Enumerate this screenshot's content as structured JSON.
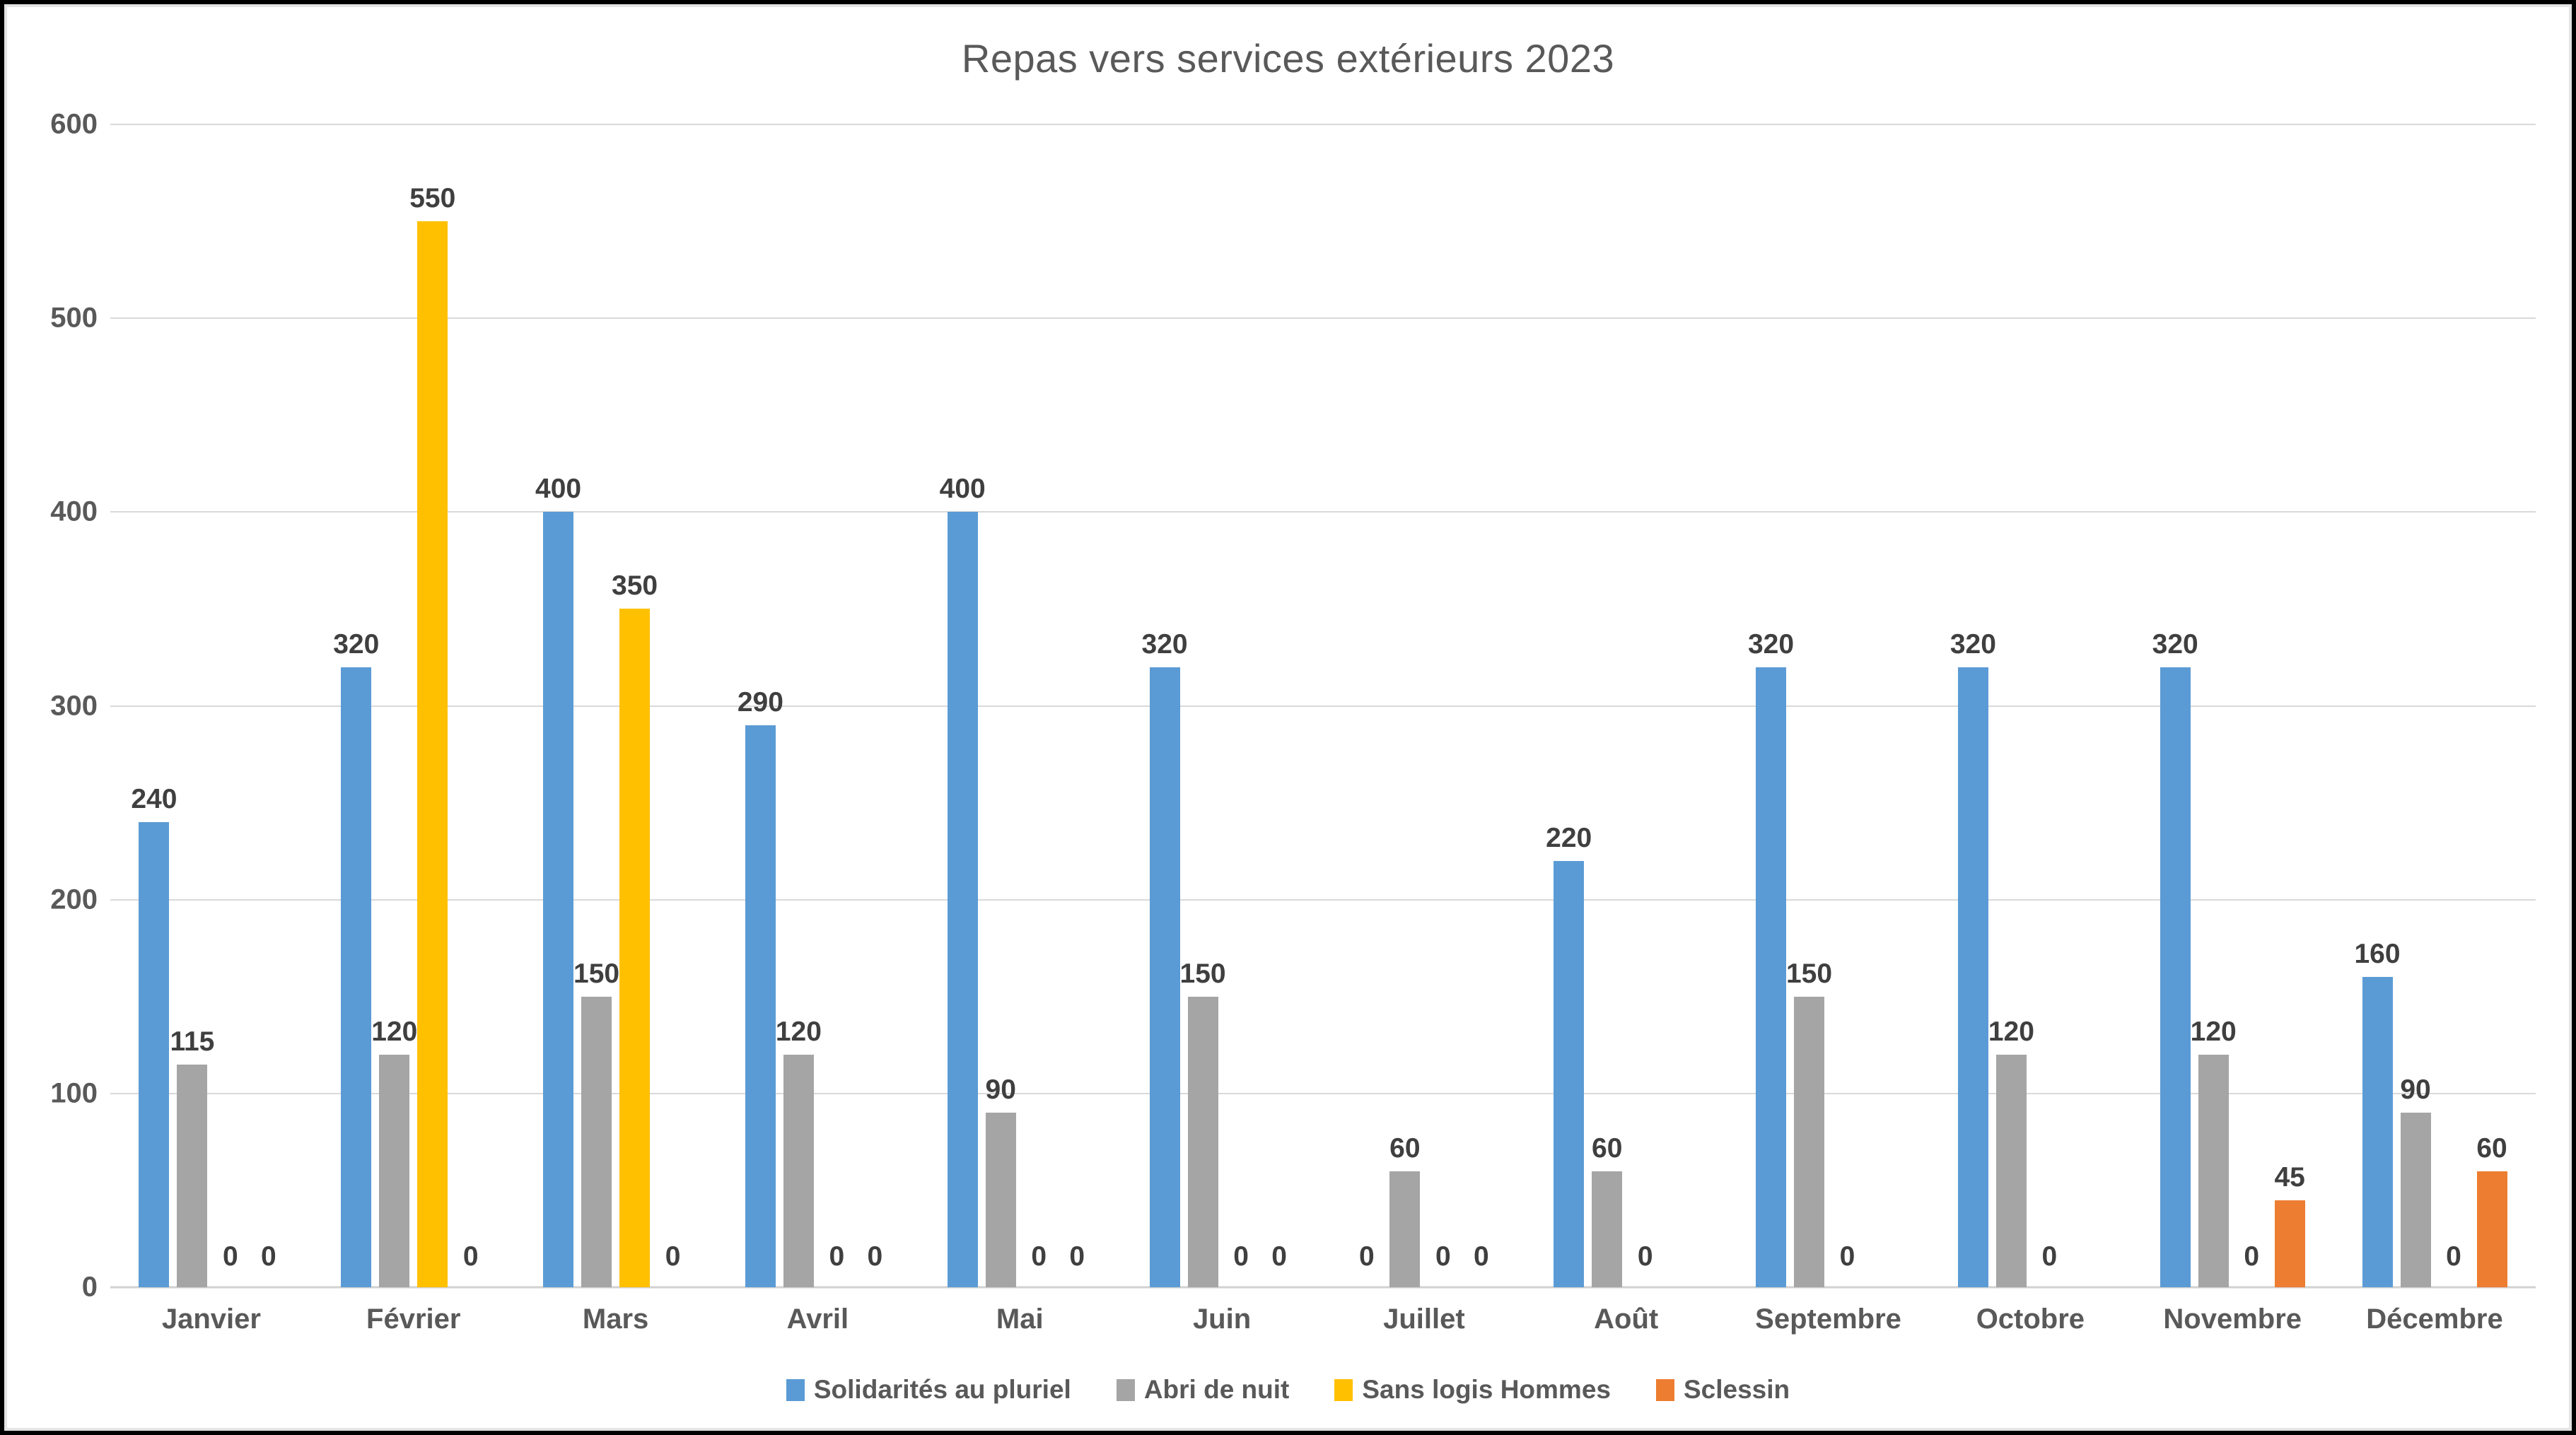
{
  "chart_data": {
    "type": "bar",
    "title": "Repas vers services extérieurs 2023",
    "categories": [
      "Janvier",
      "Février",
      "Mars",
      "Avril",
      "Mai",
      "Juin",
      "Juillet",
      "Août",
      "Septembre",
      "Octobre",
      "Novembre",
      "Décembre"
    ],
    "series": [
      {
        "name": "Solidarités au pluriel",
        "key": "solidarites-au-pluriel",
        "color": "#5B9BD5",
        "values": [
          240,
          320,
          400,
          290,
          400,
          320,
          0,
          220,
          320,
          320,
          320,
          160
        ]
      },
      {
        "name": "Abri de nuit",
        "key": "abri-de-nuit",
        "color": "#A5A5A5",
        "values": [
          115,
          120,
          150,
          120,
          90,
          150,
          60,
          60,
          150,
          120,
          120,
          90
        ]
      },
      {
        "name": "Sans logis Hommes",
        "key": "sans-logis-hommes",
        "color": "#FFC000",
        "values": [
          0,
          550,
          350,
          0,
          0,
          0,
          0,
          0,
          0,
          0,
          0,
          0
        ]
      },
      {
        "name": "Sclessin",
        "key": "sclessin",
        "color": "#ED7D31",
        "values": [
          0,
          0,
          0,
          0,
          0,
          0,
          0,
          null,
          null,
          null,
          45,
          60
        ]
      }
    ],
    "ylim": [
      0,
      600
    ],
    "yticks": [
      0,
      100,
      200,
      300,
      400,
      500,
      600
    ],
    "grid": true,
    "data_labels": true,
    "legend_position": "bottom",
    "colors": {
      "title_text": "#595959",
      "axis_text": "#595959",
      "data_label_text": "#3f3f3f",
      "gridline": "#D9D9D9",
      "frame_border": "#000000"
    }
  }
}
